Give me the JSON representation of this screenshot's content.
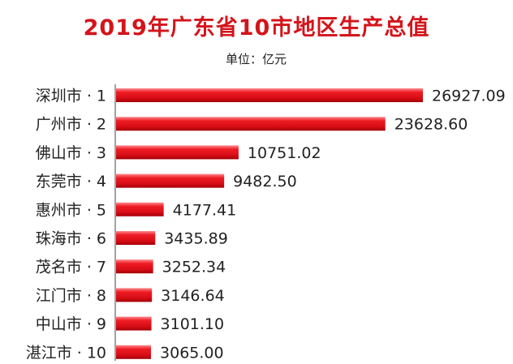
{
  "chart_data": {
    "type": "bar",
    "orientation": "horizontal",
    "title": "2019年广东省10市地区生产总值",
    "subtitle": "单位：亿元",
    "categories": [
      "深圳市 · 1",
      "广州市 · 2",
      "佛山市 · 3",
      "东莞市 · 4",
      "惠州市 · 5",
      "珠海市 · 6",
      "茂名市 · 7",
      "江门市 · 8",
      "中山市 · 9",
      "湛江市 · 10"
    ],
    "values": [
      26927.09,
      23628.6,
      10751.02,
      9482.5,
      4177.41,
      3435.89,
      3252.34,
      3146.64,
      3101.1,
      3065.0
    ],
    "value_labels": [
      "26927.09",
      "23628.60",
      "10751.02",
      "9482.50",
      "4177.41",
      "3435.89",
      "3252.34",
      "3146.64",
      "3101.10",
      "3065.00"
    ],
    "bar_color": "#e8111a",
    "xlim": [
      0,
      26927.09
    ],
    "grid": false,
    "legend": "none"
  }
}
